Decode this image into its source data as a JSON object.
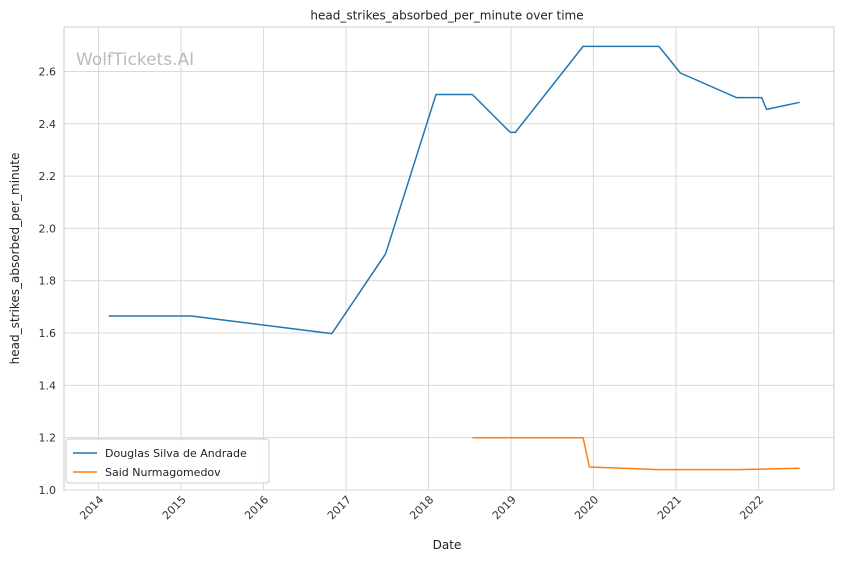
{
  "chart_data": {
    "type": "line",
    "title": "head_strikes_absorbed_per_minute over time",
    "xlabel": "Date",
    "ylabel": "head_strikes_absorbed_per_minute",
    "watermark": "WolfTickets.AI",
    "xlim": [
      "2013-08-01",
      "2022-12-01"
    ],
    "ylim": [
      1.0,
      2.77
    ],
    "x_ticks": [
      "2014",
      "2015",
      "2016",
      "2017",
      "2018",
      "2019",
      "2020",
      "2021",
      "2022"
    ],
    "y_ticks": [
      "1.0",
      "1.2",
      "1.4",
      "1.6",
      "1.8",
      "2.0",
      "2.2",
      "2.4",
      "2.6"
    ],
    "grid": true,
    "legend_position": "lower-left",
    "series": [
      {
        "name": "Douglas Silva de Andrade",
        "color": "#1f77b4",
        "points": [
          {
            "x": "2014-02-15",
            "y": 1.665
          },
          {
            "x": "2015-02-15",
            "y": 1.665
          },
          {
            "x": "2016-10-30",
            "y": 1.598
          },
          {
            "x": "2017-06-25",
            "y": 1.903
          },
          {
            "x": "2018-02-03",
            "y": 2.512
          },
          {
            "x": "2018-07-14",
            "y": 2.512
          },
          {
            "x": "2018-12-29",
            "y": 2.367
          },
          {
            "x": "2019-01-20",
            "y": 2.367
          },
          {
            "x": "2019-11-16",
            "y": 2.696
          },
          {
            "x": "2020-10-17",
            "y": 2.696
          },
          {
            "x": "2021-01-20",
            "y": 2.594
          },
          {
            "x": "2021-09-25",
            "y": 2.5
          },
          {
            "x": "2022-01-15",
            "y": 2.5
          },
          {
            "x": "2022-02-05",
            "y": 2.455
          },
          {
            "x": "2022-07-02",
            "y": 2.482
          }
        ]
      },
      {
        "name": "Said Nurmagomedov",
        "color": "#ff7f0e",
        "points": [
          {
            "x": "2018-07-14",
            "y": 1.2
          },
          {
            "x": "2019-11-16",
            "y": 1.2
          },
          {
            "x": "2019-12-14",
            "y": 1.088
          },
          {
            "x": "2020-10-17",
            "y": 1.078
          },
          {
            "x": "2021-09-25",
            "y": 1.078
          },
          {
            "x": "2022-01-15",
            "y": 1.08
          },
          {
            "x": "2022-07-02",
            "y": 1.083
          }
        ]
      }
    ]
  }
}
